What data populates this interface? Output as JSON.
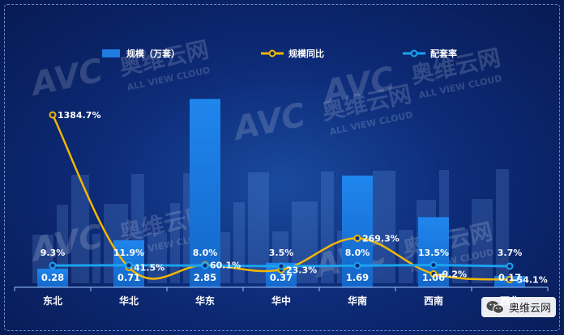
{
  "chart_data": {
    "type": "bar",
    "categories": [
      "东北",
      "华北",
      "华东",
      "华中",
      "华南",
      "西南",
      "西北"
    ],
    "series": [
      {
        "name": "规模（万套）",
        "kind": "bar",
        "color": "#1d7de0",
        "values": [
          0.28,
          0.71,
          2.85,
          0.37,
          1.69,
          1.06,
          0.17
        ],
        "labels": [
          "0.28",
          "0.71",
          "2.85",
          "0.37",
          "1.69",
          "1.06",
          "0.17"
        ]
      },
      {
        "name": "规模同比",
        "kind": "line",
        "color": "#f2b705",
        "values": [
          1384.7,
          41.5,
          60.1,
          23.3,
          269.3,
          -9.2,
          -54.1
        ],
        "labels": [
          "1384.7%",
          "41.5%",
          "60.1%",
          "23.3%",
          "269.3%",
          "-9.2%",
          "-54.1%"
        ]
      },
      {
        "name": "配套率",
        "kind": "line",
        "color": "#1aa3f0",
        "values": [
          9.3,
          11.9,
          8.0,
          3.5,
          8.0,
          13.5,
          3.7
        ],
        "labels": [
          "9.3%",
          "11.9%",
          "8.0%",
          "3.5%",
          "8.0%",
          "13.5%",
          "3.7%"
        ]
      }
    ],
    "legend_position": "top",
    "grid": false
  },
  "watermark": {
    "brand": "AVC",
    "cn": "奥维云网",
    "en": "ALL VIEW CLOUD"
  },
  "badge": {
    "label": "奥维云网",
    "icon": "wechat-icon"
  }
}
